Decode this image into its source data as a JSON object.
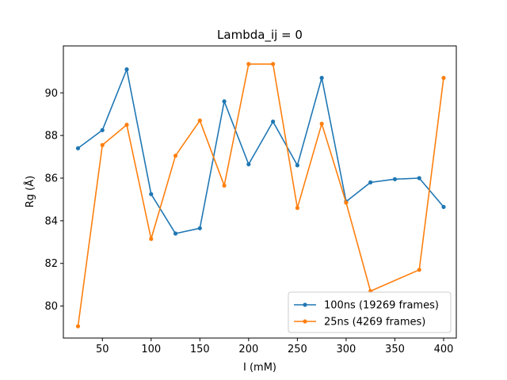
{
  "chart_data": {
    "type": "line",
    "title": "Lambda_ij = 0",
    "xlabel": "I (mM)",
    "ylabel": "Rg (Å)",
    "xlim": [
      10,
      413
    ],
    "ylim": [
      78.5,
      92.2
    ],
    "xticks": [
      50,
      100,
      150,
      200,
      250,
      300,
      350,
      400
    ],
    "yticks": [
      80,
      82,
      84,
      86,
      88,
      90
    ],
    "grid": false,
    "legend_position": "lower right",
    "x": [
      25,
      50,
      75,
      100,
      125,
      150,
      175,
      200,
      225,
      250,
      275,
      300,
      325,
      350,
      375,
      400
    ],
    "series": [
      {
        "name": "100ns (19269 frames)",
        "color": "#1f77b4",
        "values": [
          87.4,
          88.25,
          91.1,
          85.25,
          83.4,
          83.65,
          89.6,
          86.65,
          88.65,
          86.6,
          90.7,
          84.9,
          85.8,
          85.95,
          86.0,
          84.65
        ]
      },
      {
        "name": "25ns (4269 frames)",
        "color": "#ff7f0e",
        "values": [
          79.05,
          87.55,
          88.5,
          83.15,
          87.05,
          88.7,
          85.65,
          91.35,
          91.35,
          84.6,
          88.55,
          84.85,
          80.7,
          null,
          81.7,
          90.7
        ]
      }
    ]
  }
}
